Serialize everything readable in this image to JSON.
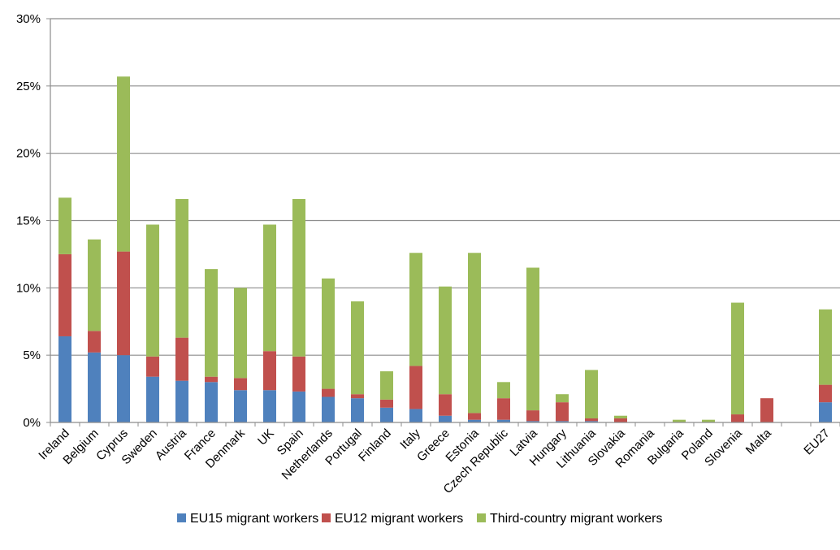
{
  "chart_data": {
    "type": "bar",
    "stacked": true,
    "categories": [
      "Ireland",
      "Belgium",
      "Cyprus",
      "Sweden",
      "Austria",
      "France",
      "Denmark",
      "UK",
      "Spain",
      "Netherlands",
      "Portugal",
      "Finland",
      "Italy",
      "Greece",
      "Estonia",
      "Czech Republic",
      "Latvia",
      "Hungary",
      "Lithuania",
      "Slovakia",
      "Romania",
      "Bulgaria",
      "Poland",
      "Slovenia",
      "Malta",
      "",
      "EU27"
    ],
    "series": [
      {
        "name": "EU15 migrant workers",
        "color": "#4F81BD",
        "values": [
          6.4,
          5.2,
          5.0,
          3.4,
          3.1,
          3.0,
          2.4,
          2.4,
          2.3,
          1.9,
          1.8,
          1.1,
          1.0,
          0.5,
          0.2,
          0.2,
          0.1,
          0.1,
          0.1,
          0.0,
          0.0,
          0.0,
          0.0,
          0.0,
          0.0,
          null,
          1.5
        ]
      },
      {
        "name": "EU12 migrant workers",
        "color": "#C0504D",
        "values": [
          6.1,
          1.6,
          7.7,
          1.5,
          3.2,
          0.4,
          0.9,
          2.9,
          2.6,
          0.6,
          0.3,
          0.6,
          3.2,
          1.6,
          0.5,
          1.6,
          0.8,
          1.4,
          0.2,
          0.3,
          0.0,
          0.0,
          0.0,
          0.6,
          1.8,
          null,
          1.3
        ]
      },
      {
        "name": "Third-country migrant workers",
        "color": "#9BBB59",
        "values": [
          4.2,
          6.8,
          13.0,
          9.8,
          10.3,
          8.0,
          6.7,
          9.4,
          11.7,
          8.2,
          6.9,
          2.1,
          8.4,
          8.0,
          11.9,
          1.2,
          10.6,
          0.6,
          3.6,
          0.2,
          0.0,
          0.2,
          0.2,
          8.3,
          0.0,
          null,
          5.6
        ]
      }
    ],
    "y_ticks": [
      "0%",
      "5%",
      "10%",
      "15%",
      "20%",
      "25%",
      "30%"
    ],
    "ylim": [
      0,
      30
    ],
    "grid": true,
    "legend_position": "bottom",
    "title": "",
    "xlabel": "",
    "ylabel": ""
  }
}
